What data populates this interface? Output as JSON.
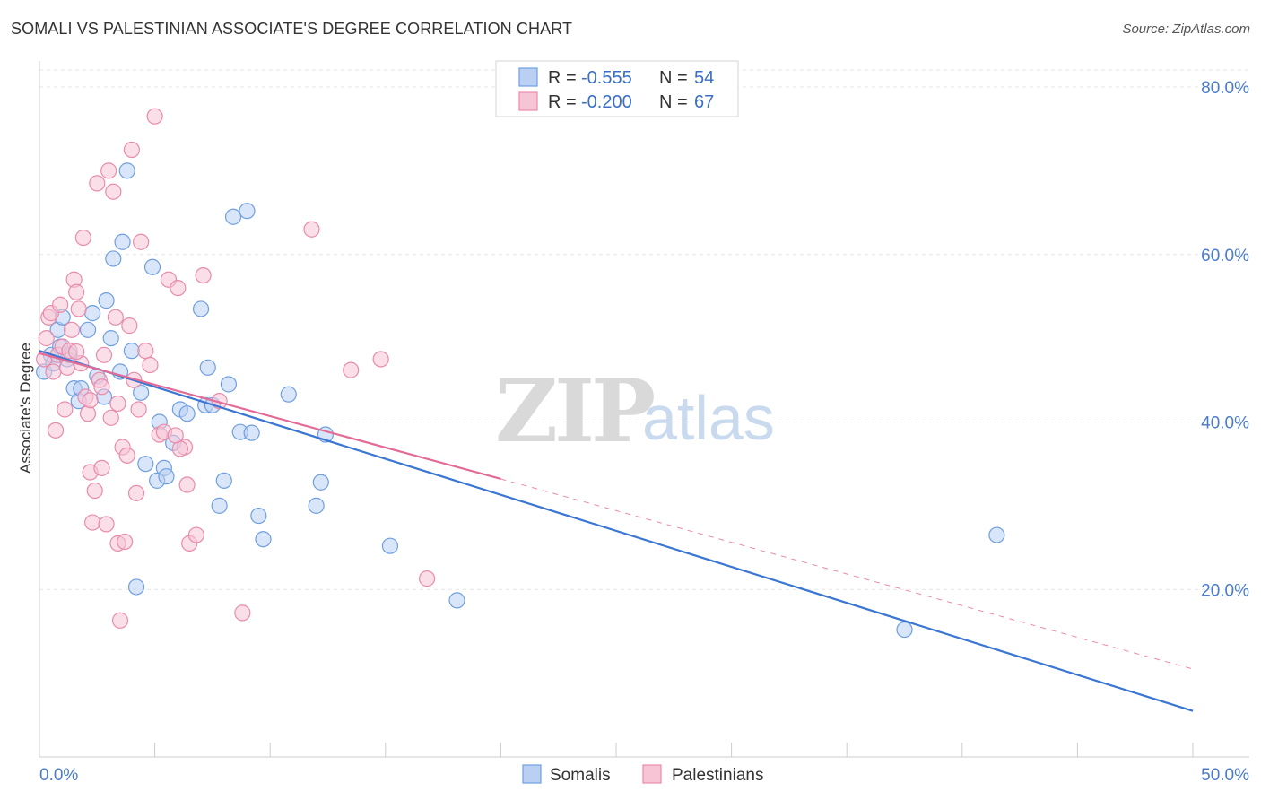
{
  "title": "SOMALI VS PALESTINIAN ASSOCIATE'S DEGREE CORRELATION CHART",
  "source": "Source: ZipAtlas.com",
  "watermark": {
    "zip": "ZIP",
    "atlas": "atlas"
  },
  "legend": {
    "rows": [
      {
        "r_label": "R =",
        "r_value": "-0.555",
        "n_label": "N =",
        "n_value": "54"
      },
      {
        "r_label": "R =",
        "r_value": "-0.200",
        "n_label": "N =",
        "n_value": "67"
      }
    ]
  },
  "chart_data": {
    "type": "scatter",
    "title": "SOMALI VS PALESTINIAN ASSOCIATE'S DEGREE CORRELATION CHART",
    "xlabel": "",
    "ylabel": "Associate's Degree",
    "xlim": [
      0,
      50
    ],
    "ylim": [
      0,
      85
    ],
    "x_tick_labels": [
      {
        "value": 0,
        "label": "0.0%"
      },
      {
        "value": 50,
        "label": "50.0%"
      }
    ],
    "y_tick_labels": [
      {
        "value": 20,
        "label": "20.0%"
      },
      {
        "value": 40,
        "label": "40.0%"
      },
      {
        "value": 60,
        "label": "60.0%"
      },
      {
        "value": 80,
        "label": "80.0%"
      }
    ],
    "series": [
      {
        "name": "Somalis",
        "color": "#6f9fe0",
        "fill": "#b9d0f3",
        "r": -0.555,
        "n": 54,
        "trend": {
          "x0": 0,
          "y0": 48.5,
          "x1": 50,
          "y1": 5.5
        },
        "points": [
          [
            0.2,
            46
          ],
          [
            0.5,
            48
          ],
          [
            0.6,
            47
          ],
          [
            0.8,
            51
          ],
          [
            0.9,
            49
          ],
          [
            1.0,
            52.5
          ],
          [
            1.2,
            47.5
          ],
          [
            1.3,
            48
          ],
          [
            1.5,
            44
          ],
          [
            1.7,
            42.5
          ],
          [
            1.8,
            44
          ],
          [
            2.1,
            51
          ],
          [
            2.3,
            53
          ],
          [
            2.5,
            45.5
          ],
          [
            2.8,
            43
          ],
          [
            2.9,
            54.5
          ],
          [
            3.1,
            50
          ],
          [
            3.2,
            59.5
          ],
          [
            3.5,
            46
          ],
          [
            3.6,
            61.5
          ],
          [
            3.8,
            70
          ],
          [
            4.0,
            48.5
          ],
          [
            4.2,
            20.3
          ],
          [
            4.4,
            43.5
          ],
          [
            4.6,
            35
          ],
          [
            4.9,
            58.5
          ],
          [
            5.1,
            33
          ],
          [
            5.2,
            40
          ],
          [
            5.4,
            34.5
          ],
          [
            5.5,
            33.5
          ],
          [
            5.8,
            37.5
          ],
          [
            6.1,
            41.5
          ],
          [
            6.4,
            41
          ],
          [
            7.0,
            53.5
          ],
          [
            7.2,
            42
          ],
          [
            7.3,
            46.5
          ],
          [
            7.5,
            42
          ],
          [
            7.8,
            30
          ],
          [
            8.0,
            33
          ],
          [
            8.2,
            44.5
          ],
          [
            8.4,
            64.5
          ],
          [
            8.7,
            38.8
          ],
          [
            9.0,
            65.2
          ],
          [
            9.2,
            38.7
          ],
          [
            9.5,
            28.8
          ],
          [
            9.7,
            26
          ],
          [
            10.8,
            43.3
          ],
          [
            12.0,
            30
          ],
          [
            12.2,
            32.8
          ],
          [
            12.4,
            38.5
          ],
          [
            15.2,
            25.2
          ],
          [
            18.1,
            18.7
          ],
          [
            37.5,
            15.2
          ],
          [
            41.5,
            26.5
          ]
        ]
      },
      {
        "name": "Palestinians",
        "color": "#e98bab",
        "fill": "#f6c4d5",
        "r": -0.2,
        "n": 67,
        "trend": {
          "x0": 0,
          "y0": 48.2,
          "x1": 20,
          "y1": 33.2
        },
        "trend_ext": {
          "x0": 20,
          "y0": 33.2,
          "x1": 50,
          "y1": 10.5
        },
        "points": [
          [
            0.2,
            47.5
          ],
          [
            0.3,
            50
          ],
          [
            0.4,
            52.5
          ],
          [
            0.5,
            53
          ],
          [
            0.6,
            46
          ],
          [
            0.8,
            48
          ],
          [
            0.9,
            54
          ],
          [
            1.0,
            49
          ],
          [
            1.1,
            41.5
          ],
          [
            1.2,
            46.5
          ],
          [
            1.3,
            48.5
          ],
          [
            1.4,
            51
          ],
          [
            1.5,
            57
          ],
          [
            1.6,
            55.5
          ],
          [
            1.7,
            53.5
          ],
          [
            1.8,
            47
          ],
          [
            1.9,
            62
          ],
          [
            2.0,
            43
          ],
          [
            2.1,
            41
          ],
          [
            2.2,
            34
          ],
          [
            2.3,
            28
          ],
          [
            2.4,
            31.8
          ],
          [
            2.5,
            68.5
          ],
          [
            2.6,
            45
          ],
          [
            2.7,
            34.5
          ],
          [
            2.8,
            48
          ],
          [
            2.9,
            27.8
          ],
          [
            3.0,
            70
          ],
          [
            3.1,
            40.5
          ],
          [
            3.2,
            67.5
          ],
          [
            3.3,
            52.5
          ],
          [
            3.4,
            25.5
          ],
          [
            3.5,
            16.3
          ],
          [
            3.6,
            37
          ],
          [
            3.7,
            25.7
          ],
          [
            3.8,
            36
          ],
          [
            3.9,
            51.5
          ],
          [
            4.0,
            72.5
          ],
          [
            4.2,
            31.5
          ],
          [
            4.3,
            41.5
          ],
          [
            4.4,
            61.5
          ],
          [
            4.6,
            48.5
          ],
          [
            4.8,
            46.8
          ],
          [
            5.0,
            76.5
          ],
          [
            5.2,
            38.5
          ],
          [
            5.4,
            38.8
          ],
          [
            5.6,
            57
          ],
          [
            6.0,
            56
          ],
          [
            6.3,
            37
          ],
          [
            6.4,
            32.5
          ],
          [
            6.5,
            25.5
          ],
          [
            6.8,
            26.5
          ],
          [
            7.1,
            57.5
          ],
          [
            7.8,
            42.5
          ],
          [
            8.8,
            17.2
          ],
          [
            11.8,
            63
          ],
          [
            13.5,
            46.2
          ],
          [
            14.8,
            47.5
          ],
          [
            16.8,
            21.3
          ],
          [
            1.6,
            48.4
          ],
          [
            2.2,
            42.6
          ],
          [
            3.4,
            42.2
          ],
          [
            4.1,
            45.0
          ],
          [
            0.7,
            39.0
          ],
          [
            6.1,
            36.8
          ],
          [
            5.9,
            38.4
          ],
          [
            2.7,
            44.2
          ]
        ]
      }
    ]
  },
  "bottom_legend": [
    "Somalis",
    "Palestinians"
  ],
  "colors": {
    "blue_line": "#3a76d2",
    "pink_line": "#e26c97",
    "grid": "#e6e6e6",
    "axis_label": "#4a7cc9"
  }
}
